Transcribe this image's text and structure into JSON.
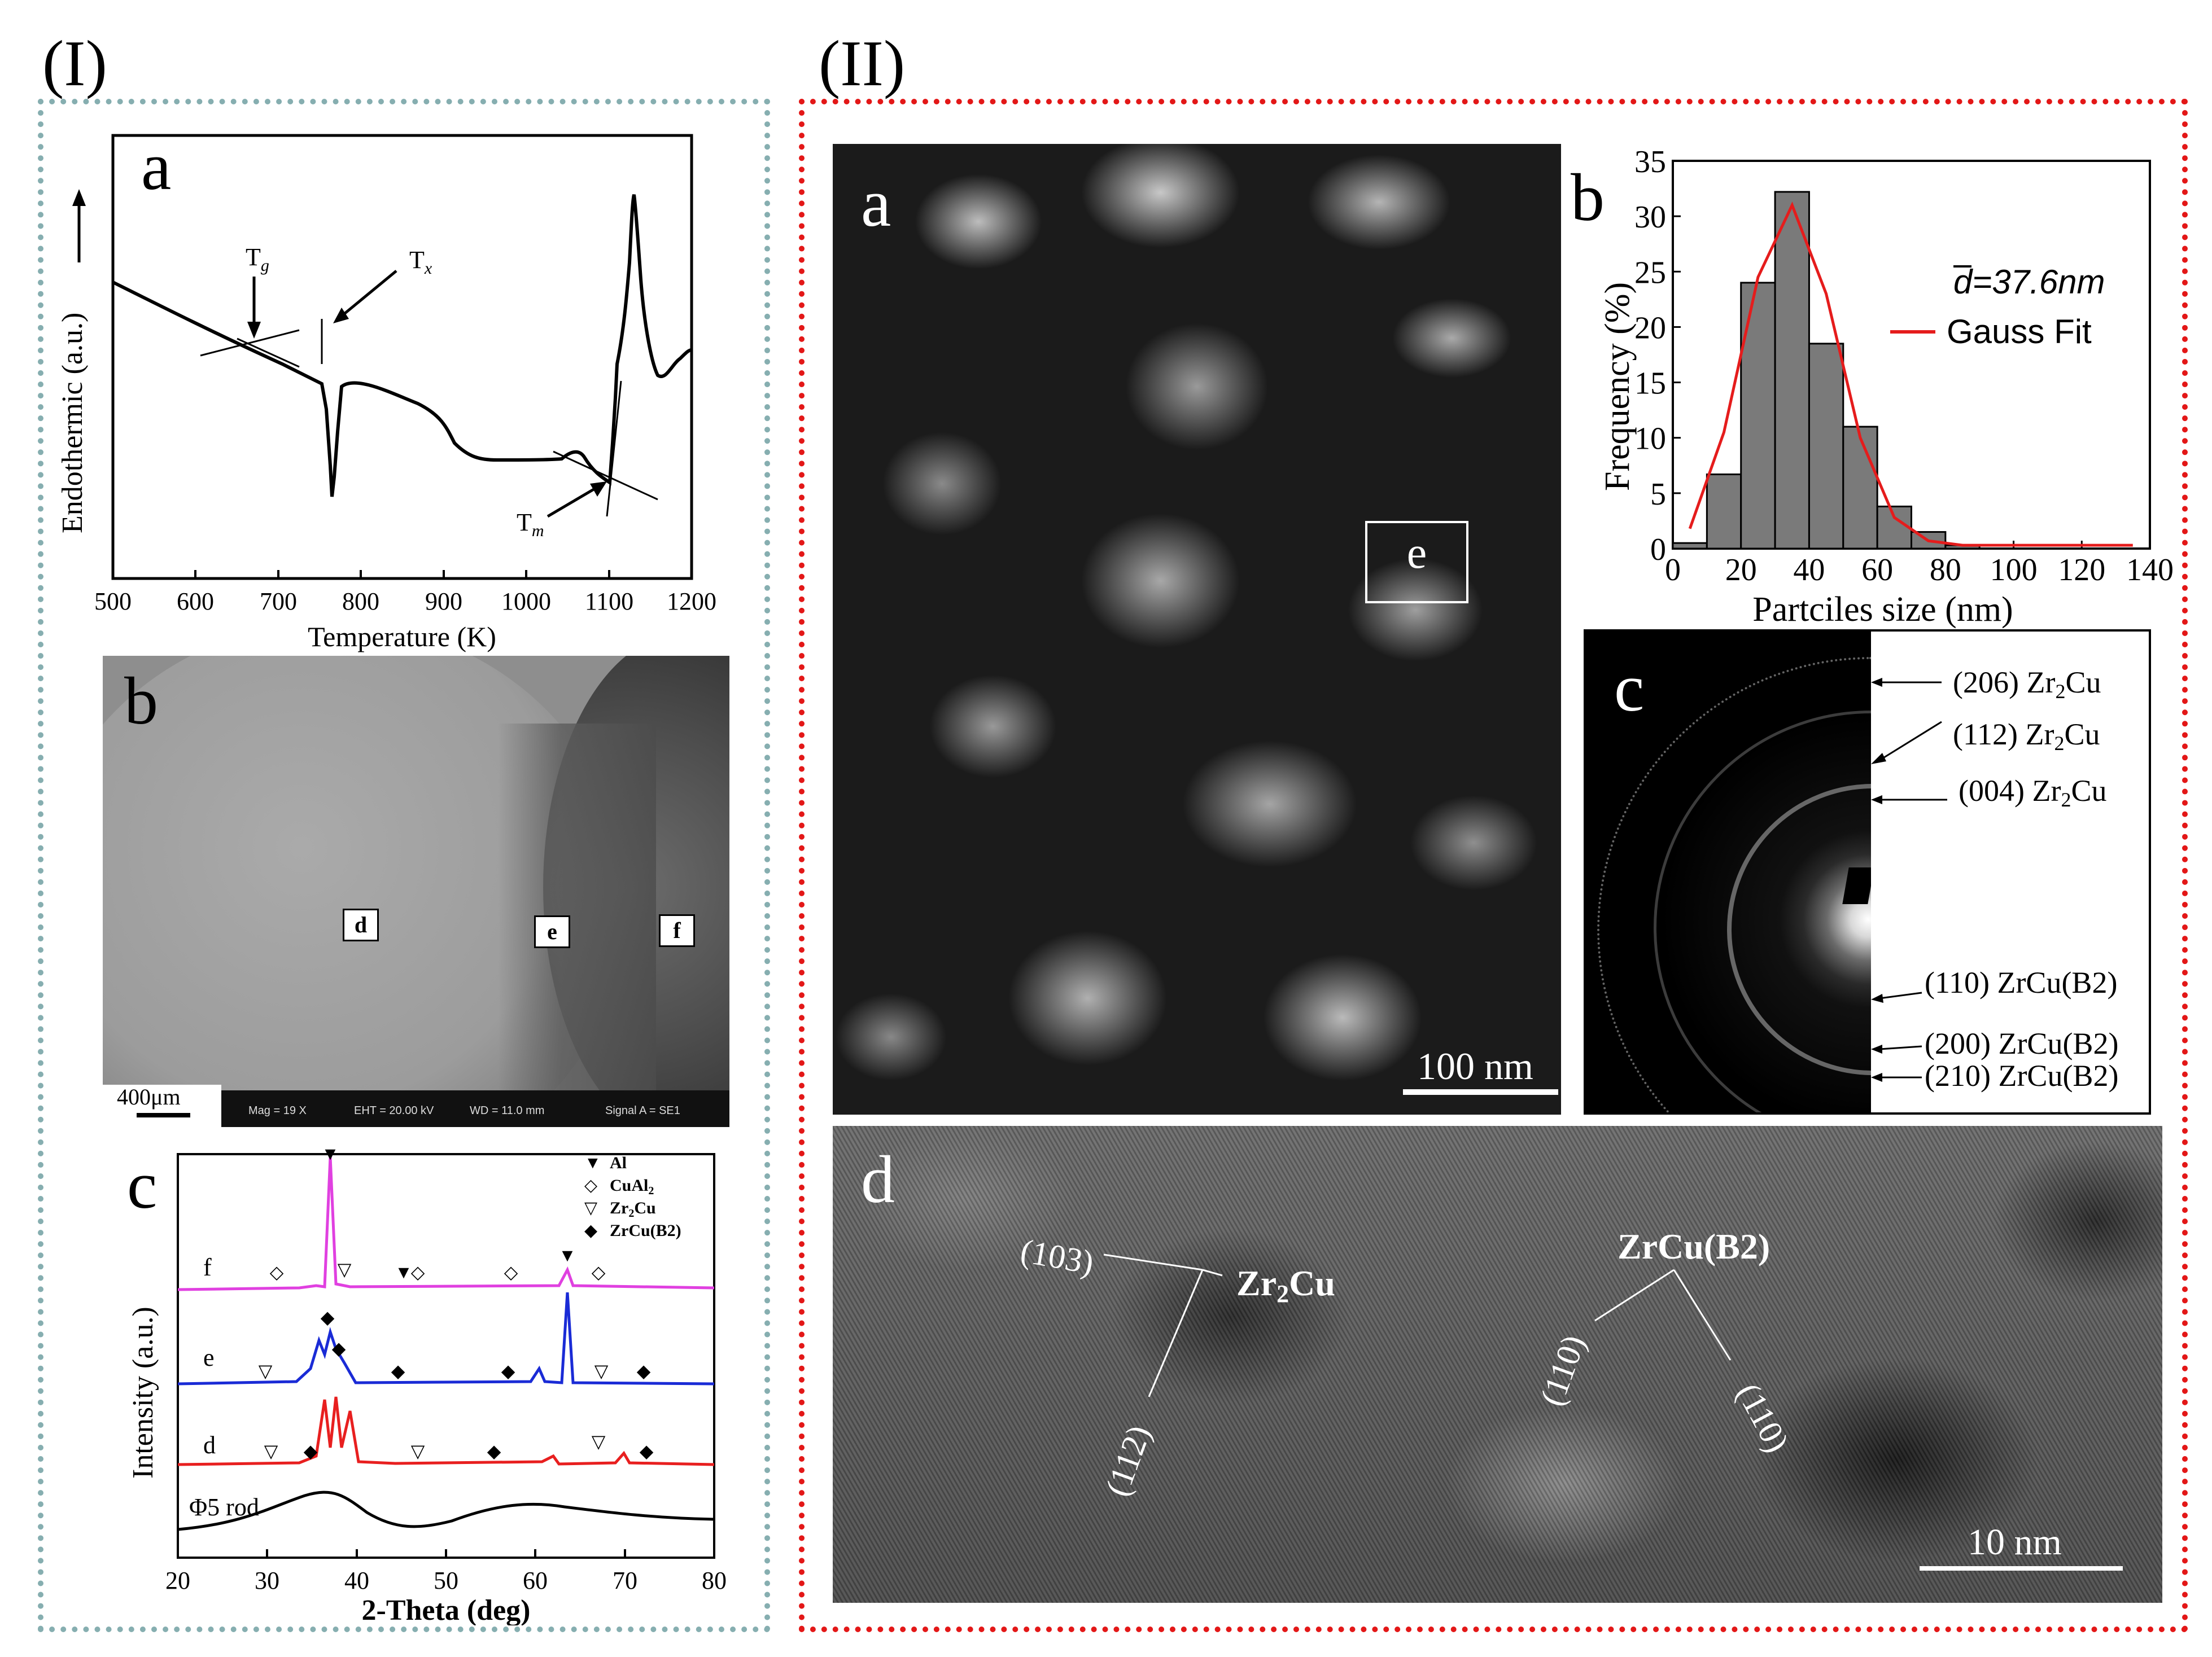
{
  "panel_labels": {
    "left": "(I)",
    "right": "(II)"
  },
  "left": {
    "dsc": {
      "letter": "a",
      "ylabel": "Endothermic (a.u.)",
      "xlabel": "Temperature (K)",
      "xticks": [
        "500",
        "600",
        "700",
        "800",
        "900",
        "1000",
        "1100",
        "1200"
      ],
      "ann_tg": "T",
      "ann_tg_sub": "g",
      "ann_tx": "T",
      "ann_tx_sub": "x",
      "ann_tm": "T",
      "ann_tm_sub": "m"
    },
    "sem": {
      "letter": "b",
      "box_d": "d",
      "box_e": "e",
      "box_f": "f",
      "scale": "400μm",
      "mag": "Mag =   19 X",
      "eht": "EHT = 20.00 kV",
      "wd": "WD = 11.0 mm",
      "signal": "Signal A = SE1"
    },
    "xrd": {
      "letter": "c",
      "ylabel": "Intensity (a.u.)",
      "xlabel": "2-Theta (deg)",
      "xticks": [
        "20",
        "30",
        "40",
        "50",
        "60",
        "70",
        "80"
      ],
      "curve_labels": [
        "f",
        "e",
        "d",
        "Φ5 rod"
      ],
      "legend": [
        "Al",
        "CuAl",
        "Zr",
        "ZrCu(B2)"
      ],
      "legend_sub_cual": "2",
      "legend_sub_zr": "2",
      "legend_zr_tail": "Cu",
      "colors": {
        "f": "#e040e0",
        "e": "#1a2bd6",
        "d": "#e81f1f",
        "rod": "#000000"
      }
    }
  },
  "right": {
    "tem": {
      "letter": "a",
      "box": "e",
      "scale": "100 nm"
    },
    "hist": {
      "letter": "b",
      "ylabel": "Frequency (%)",
      "xlabel": "Partciles  size (nm)",
      "mean_label": "d=37.6nm",
      "fit_label": "Gauss Fit",
      "fit_color": "#e51c1c"
    },
    "saed": {
      "letter": "c",
      "rings": [
        "(206) Zr",
        "(112) Zr",
        "(004) Zr",
        "(110) ZrCu(B2)",
        "(200) ZrCu(B2)",
        "(210) ZrCu(B2)"
      ],
      "sub": "2",
      "tail": "Cu"
    },
    "hrtem": {
      "letter": "d",
      "labels": {
        "p103": "(103)",
        "p112": "(112)",
        "zr2cu": "Zr",
        "zr2cu_sub": "2",
        "zr2cu_tail": "Cu",
        "zrcu": "ZrCu(B2)",
        "pm110": "(110)",
        "p110": "(110)"
      },
      "scale": "10 nm"
    }
  },
  "chart_data": [
    {
      "type": "bar",
      "title": "",
      "xlabel": "Partciles  size (nm)",
      "ylabel": "Frequency (%)",
      "x": [
        5,
        15,
        25,
        35,
        45,
        55,
        65,
        75,
        85
      ],
      "values": [
        0.5,
        6.7,
        24.0,
        32.2,
        18.5,
        11.0,
        3.8,
        1.5,
        0.3
      ],
      "xlim": [
        0,
        140
      ],
      "ylim": [
        0,
        35
      ],
      "xticks": [
        0,
        20,
        40,
        60,
        80,
        100,
        120,
        140
      ],
      "yticks": [
        0,
        5,
        10,
        15,
        20,
        25,
        30,
        35
      ],
      "series": [
        {
          "name": "Gauss Fit",
          "type": "line",
          "x": [
            5,
            15,
            25,
            35,
            45,
            55,
            65,
            75,
            85,
            100,
            120,
            135
          ],
          "values": [
            1.8,
            10.5,
            24.5,
            31.0,
            23.0,
            10.0,
            2.8,
            0.7,
            0.3,
            0.3,
            0.3,
            0.3
          ]
        }
      ],
      "legend": "top-right"
    }
  ]
}
